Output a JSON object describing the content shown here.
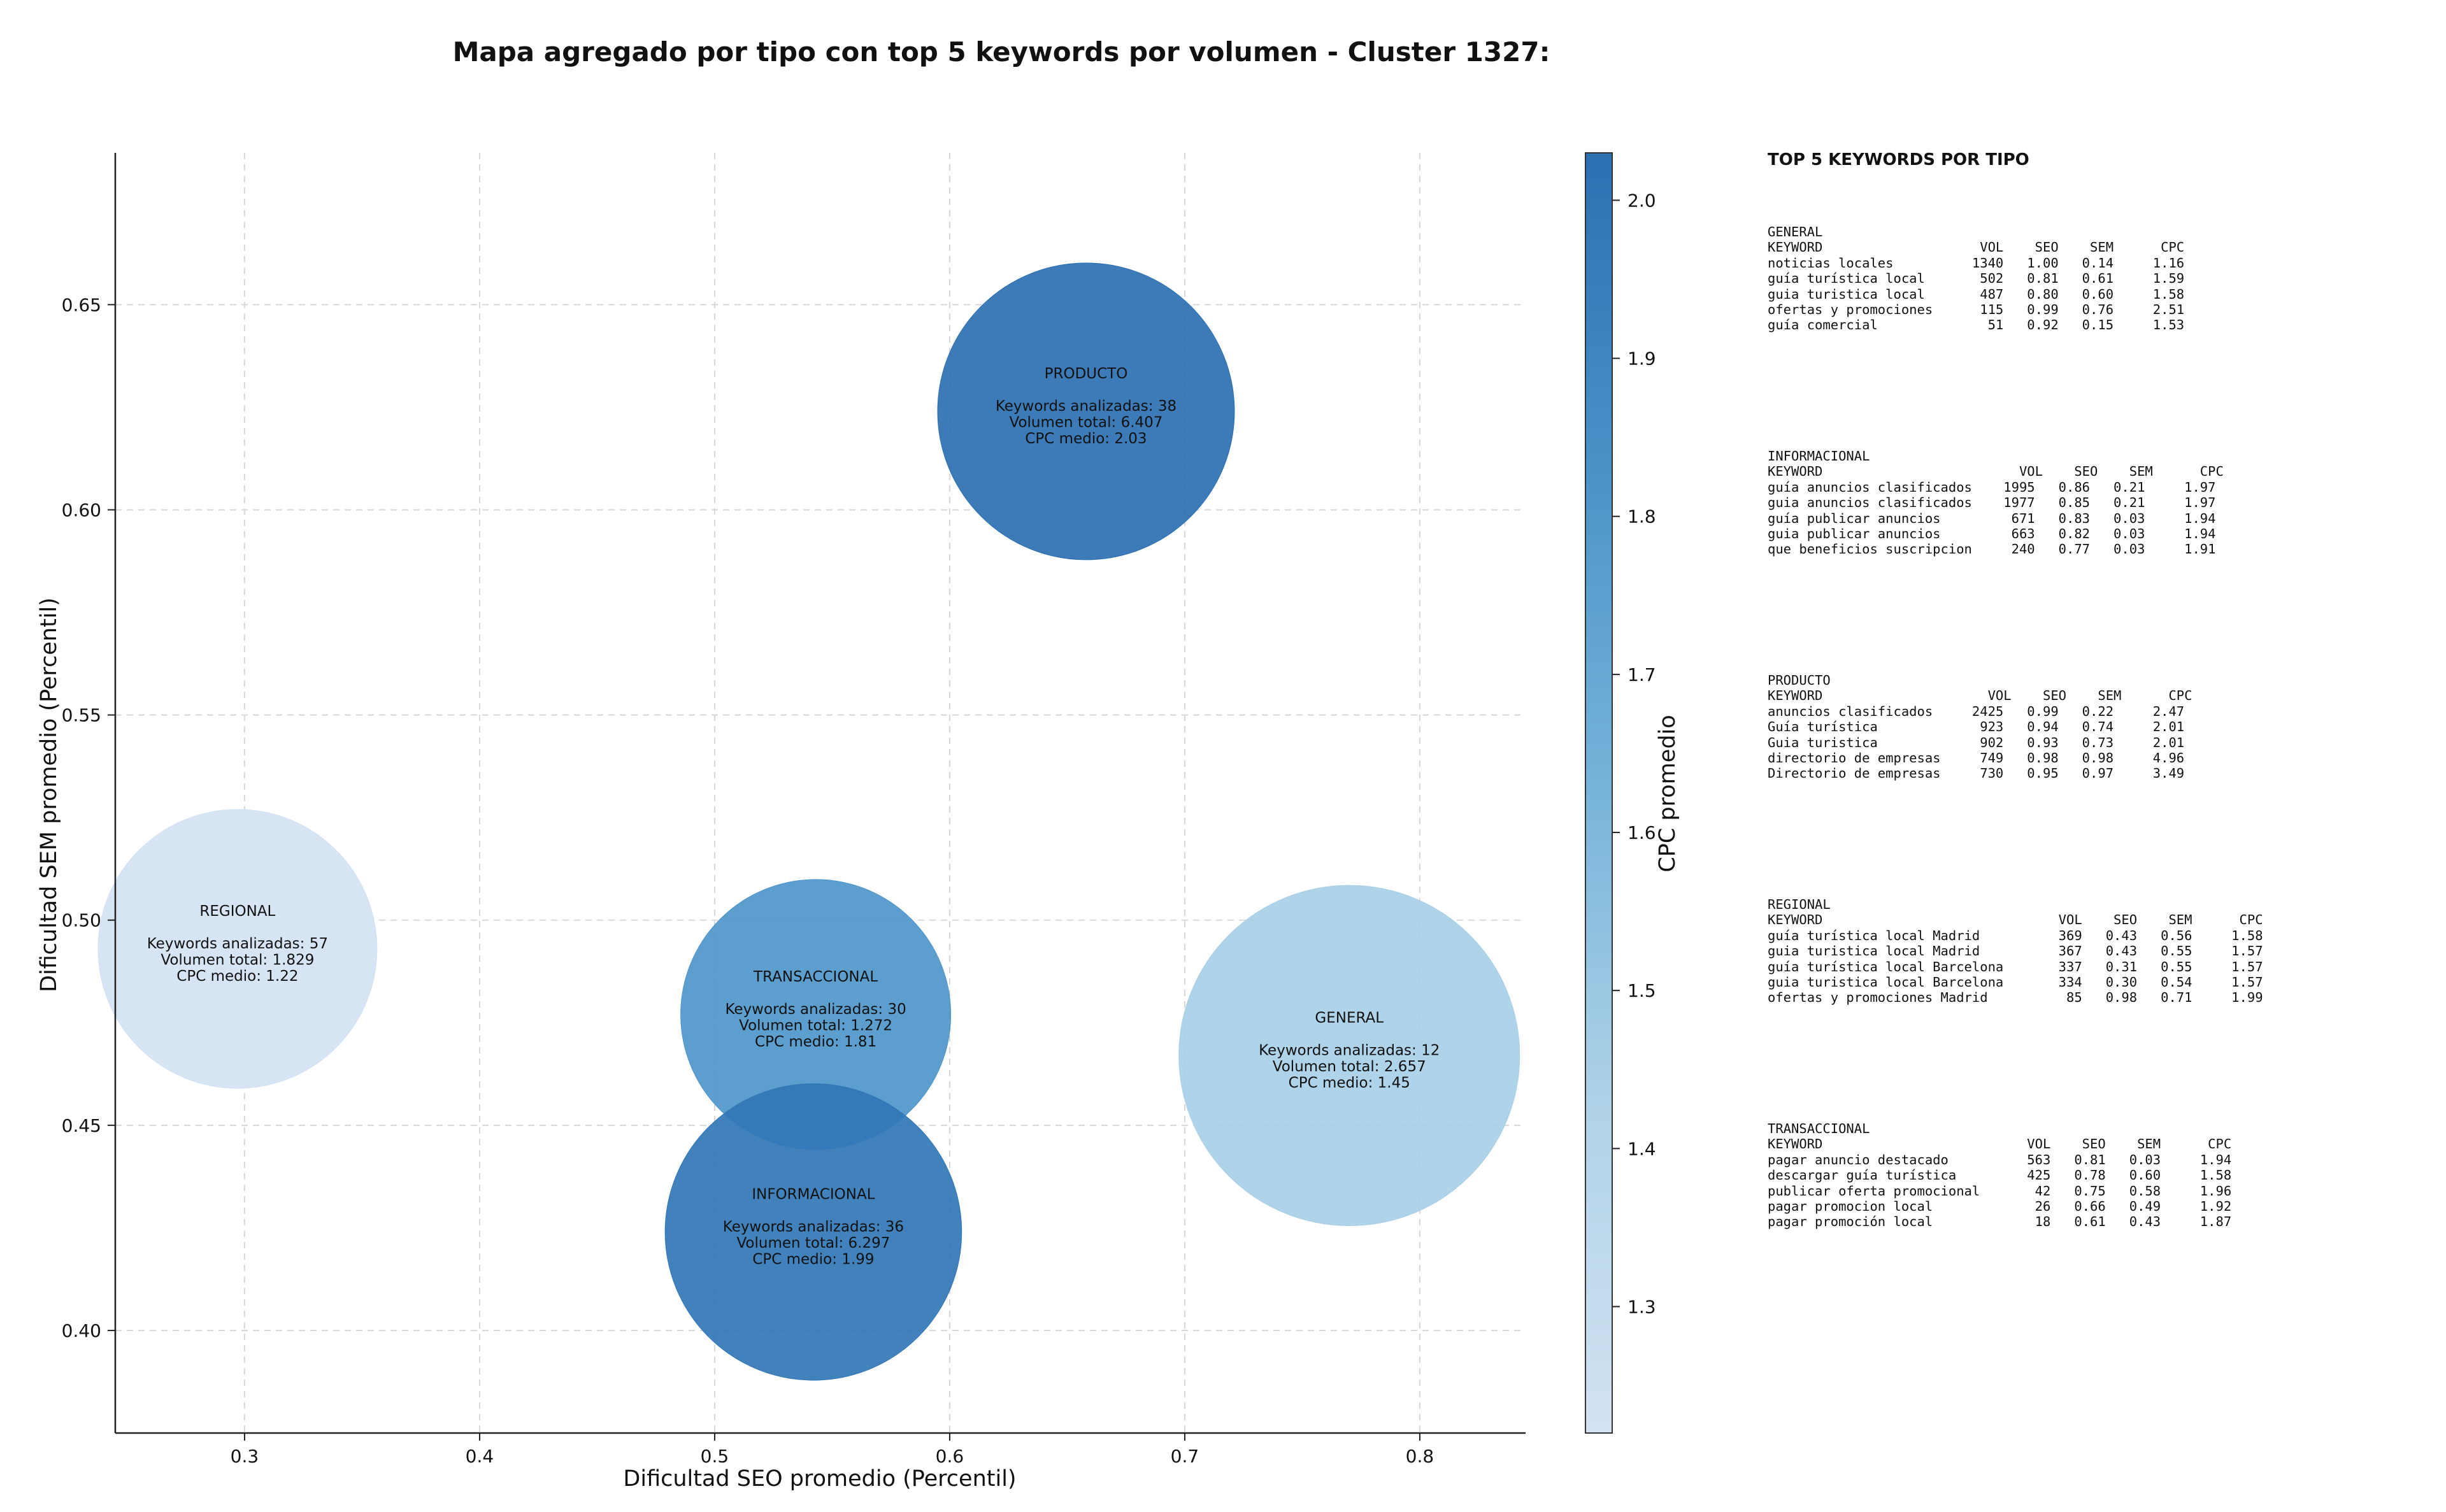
{
  "chart_data": {
    "type": "scatter",
    "title": "Mapa agregado por tipo con top 5 keywords por volumen - Cluster 1327:",
    "xlabel": "Dificultad SEO promedio (Percentil)",
    "ylabel": "Dificultad SEM promedio (Percentil)",
    "xlim": [
      0.245,
      0.845
    ],
    "ylim": [
      0.375,
      0.687
    ],
    "xticks": [
      "0.3",
      "0.4",
      "0.5",
      "0.6",
      "0.7",
      "0.8"
    ],
    "xtick_values": [
      0.3,
      0.4,
      0.5,
      0.6,
      0.7,
      0.8
    ],
    "yticks": [
      "0.40",
      "0.45",
      "0.50",
      "0.55",
      "0.60",
      "0.65"
    ],
    "ytick_values": [
      0.4,
      0.45,
      0.5,
      0.55,
      0.6,
      0.65
    ],
    "grid": true,
    "colorbar": {
      "label": "CPC promedio",
      "range": [
        1.22,
        2.03
      ],
      "ticks": [
        "1.3",
        "1.4",
        "1.5",
        "1.6",
        "1.7",
        "1.8",
        "1.9",
        "2.0"
      ],
      "tick_values": [
        1.3,
        1.4,
        1.5,
        1.6,
        1.7,
        1.8,
        1.9,
        2.0
      ]
    },
    "bubbles": [
      {
        "name": "REGIONAL",
        "x": 0.297,
        "y": 0.493,
        "volume": 1829,
        "cpc": 1.22,
        "lines": [
          "REGIONAL",
          "",
          "Keywords analizadas: 57",
          "Volumen total: 1.829",
          "CPC medio: 1.22"
        ]
      },
      {
        "name": "TRANSACCIONAL",
        "x": 0.543,
        "y": 0.477,
        "volume": 1272,
        "cpc": 1.81,
        "lines": [
          "TRANSACCIONAL",
          "",
          "Keywords analizadas: 30",
          "Volumen total: 1.272",
          "CPC medio: 1.81"
        ]
      },
      {
        "name": "INFORMACIONAL",
        "x": 0.542,
        "y": 0.424,
        "volume": 6297,
        "cpc": 1.99,
        "lines": [
          "INFORMACIONAL",
          "",
          "Keywords analizadas: 36",
          "Volumen total: 6.297",
          "CPC medio: 1.99"
        ]
      },
      {
        "name": "PRODUCTO",
        "x": 0.658,
        "y": 0.624,
        "volume": 6407,
        "cpc": 2.03,
        "lines": [
          "PRODUCTO",
          "",
          "Keywords analizadas: 38",
          "Volumen total: 6.407",
          "CPC medio: 2.03"
        ]
      },
      {
        "name": "GENERAL",
        "x": 0.77,
        "y": 0.467,
        "volume": 2657,
        "cpc": 1.45,
        "lines": [
          "GENERAL",
          "",
          "Keywords analizadas: 12",
          "Volumen total: 2.657",
          "CPC medio: 1.45"
        ]
      }
    ]
  },
  "table": {
    "title": "TOP 5 KEYWORDS POR TIPO",
    "blocks": [
      {
        "id": "general",
        "text": "GENERAL\nKEYWORD                    VOL    SEO    SEM      CPC\nnoticias locales          1340   1.00   0.14     1.16\nguía turística local       502   0.81   0.61     1.59\nguia turistica local       487   0.80   0.60     1.58\nofertas y promociones      115   0.99   0.76     2.51\nguía comercial              51   0.92   0.15     1.53"
      },
      {
        "id": "informacional",
        "text": "INFORMACIONAL\nKEYWORD                         VOL    SEO    SEM      CPC\nguía anuncios clasificados    1995   0.86   0.21     1.97\nguia anuncios clasificados    1977   0.85   0.21     1.97\nguía publicar anuncios         671   0.83   0.03     1.94\nguia publicar anuncios         663   0.82   0.03     1.94\nque beneficios suscripcion     240   0.77   0.03     1.91"
      },
      {
        "id": "producto",
        "text": "PRODUCTO\nKEYWORD                     VOL    SEO    SEM      CPC\nanuncios clasificados     2425   0.99   0.22     2.47\nGuía turística             923   0.94   0.74     2.01\nGuia turistica             902   0.93   0.73     2.01\ndirectorio de empresas     749   0.98   0.98     4.96\nDirectorio de empresas     730   0.95   0.97     3.49"
      },
      {
        "id": "regional",
        "text": "REGIONAL\nKEYWORD                              VOL    SEO    SEM      CPC\nguía turística local Madrid          369   0.43   0.56     1.58\nguia turistica local Madrid          367   0.43   0.55     1.57\nguía turística local Barcelona       337   0.31   0.55     1.57\nguia turistica local Barcelona       334   0.30   0.54     1.57\nofertas y promociones Madrid          85   0.98   0.71     1.99"
      },
      {
        "id": "transaccional",
        "text": "TRANSACCIONAL\nKEYWORD                          VOL    SEO    SEM      CPC\npagar anuncio destacado          563   0.81   0.03     1.94\ndescargar guía turística         425   0.78   0.60     1.58\npublicar oferta promocional       42   0.75   0.58     1.96\npagar promocion local             26   0.66   0.49     1.92\npagar promoción local             18   0.61   0.43     1.87"
      }
    ]
  }
}
